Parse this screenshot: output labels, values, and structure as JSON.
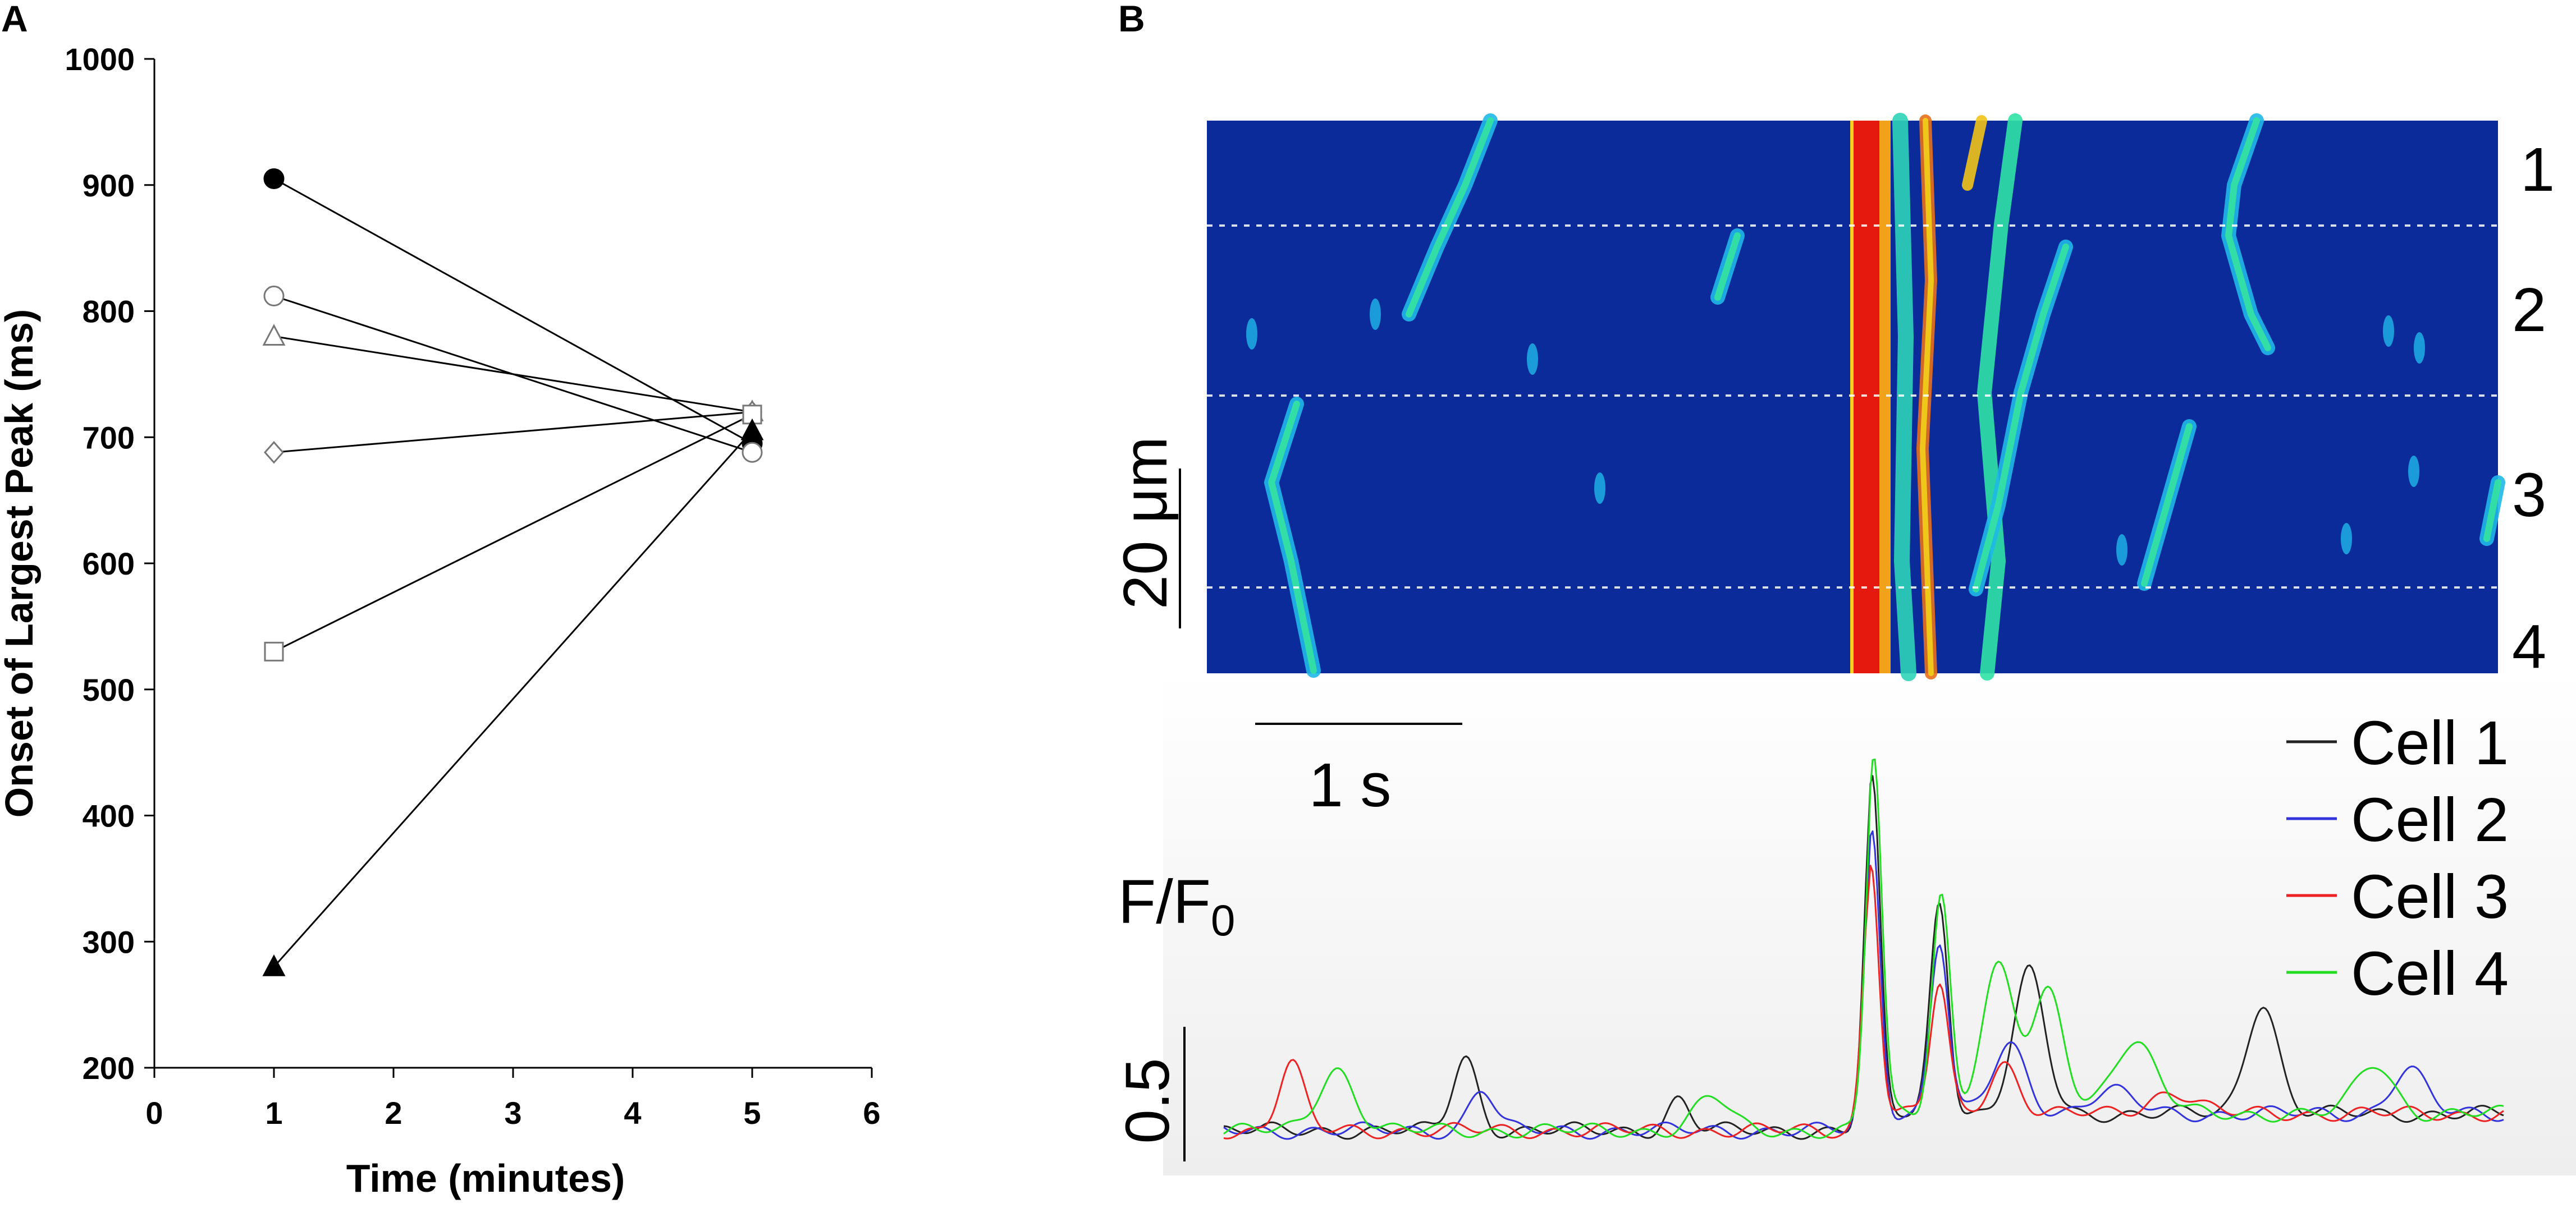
{
  "panels": {
    "a": {
      "letter": "A"
    },
    "b": {
      "letter": "B"
    }
  },
  "chart_data": [
    {
      "type": "line",
      "panel": "A",
      "xlabel": "Time (minutes)",
      "ylabel": "Onset of Largest Peak (ms)",
      "xlim": [
        0,
        6
      ],
      "ylim": [
        200,
        1000
      ],
      "xticks": [
        "0",
        "1",
        "2",
        "3",
        "4",
        "5",
        "6"
      ],
      "yticks": [
        "200",
        "300",
        "400",
        "500",
        "600",
        "700",
        "800",
        "900",
        "1000"
      ],
      "grid": false,
      "legend": "none",
      "series": [
        {
          "marker": "filled-circle",
          "x": [
            1,
            5
          ],
          "y": [
            905,
            695
          ]
        },
        {
          "marker": "open-circle",
          "x": [
            1,
            5
          ],
          "y": [
            812,
            688
          ]
        },
        {
          "marker": "open-triangle",
          "x": [
            1,
            5
          ],
          "y": [
            780,
            720
          ]
        },
        {
          "marker": "open-diamond",
          "x": [
            1,
            5
          ],
          "y": [
            688,
            720
          ]
        },
        {
          "marker": "open-square",
          "x": [
            1,
            5
          ],
          "y": [
            530,
            718
          ]
        },
        {
          "marker": "filled-triangle",
          "x": [
            1,
            5
          ],
          "y": [
            280,
            705
          ]
        }
      ]
    },
    {
      "type": "heatmap",
      "panel": "B-linescan",
      "row_labels": [
        "1",
        "2",
        "3",
        "4"
      ],
      "space_scale_label": "20 μm",
      "time_scale_label": "1 s",
      "colormap": "jet",
      "background_color": "#0c2b9a"
    },
    {
      "type": "line",
      "panel": "B-traces",
      "ylabel": "F/F",
      "ylabel_subscript": "0",
      "y_scale_label": "0.5",
      "legend": "top-right",
      "series": [
        {
          "name": "Cell 1",
          "color": "#222222"
        },
        {
          "name": "Cell 2",
          "color": "#3333dd"
        },
        {
          "name": "Cell 3",
          "color": "#ee2222"
        },
        {
          "name": "Cell 4",
          "color": "#22dd22"
        }
      ]
    }
  ]
}
